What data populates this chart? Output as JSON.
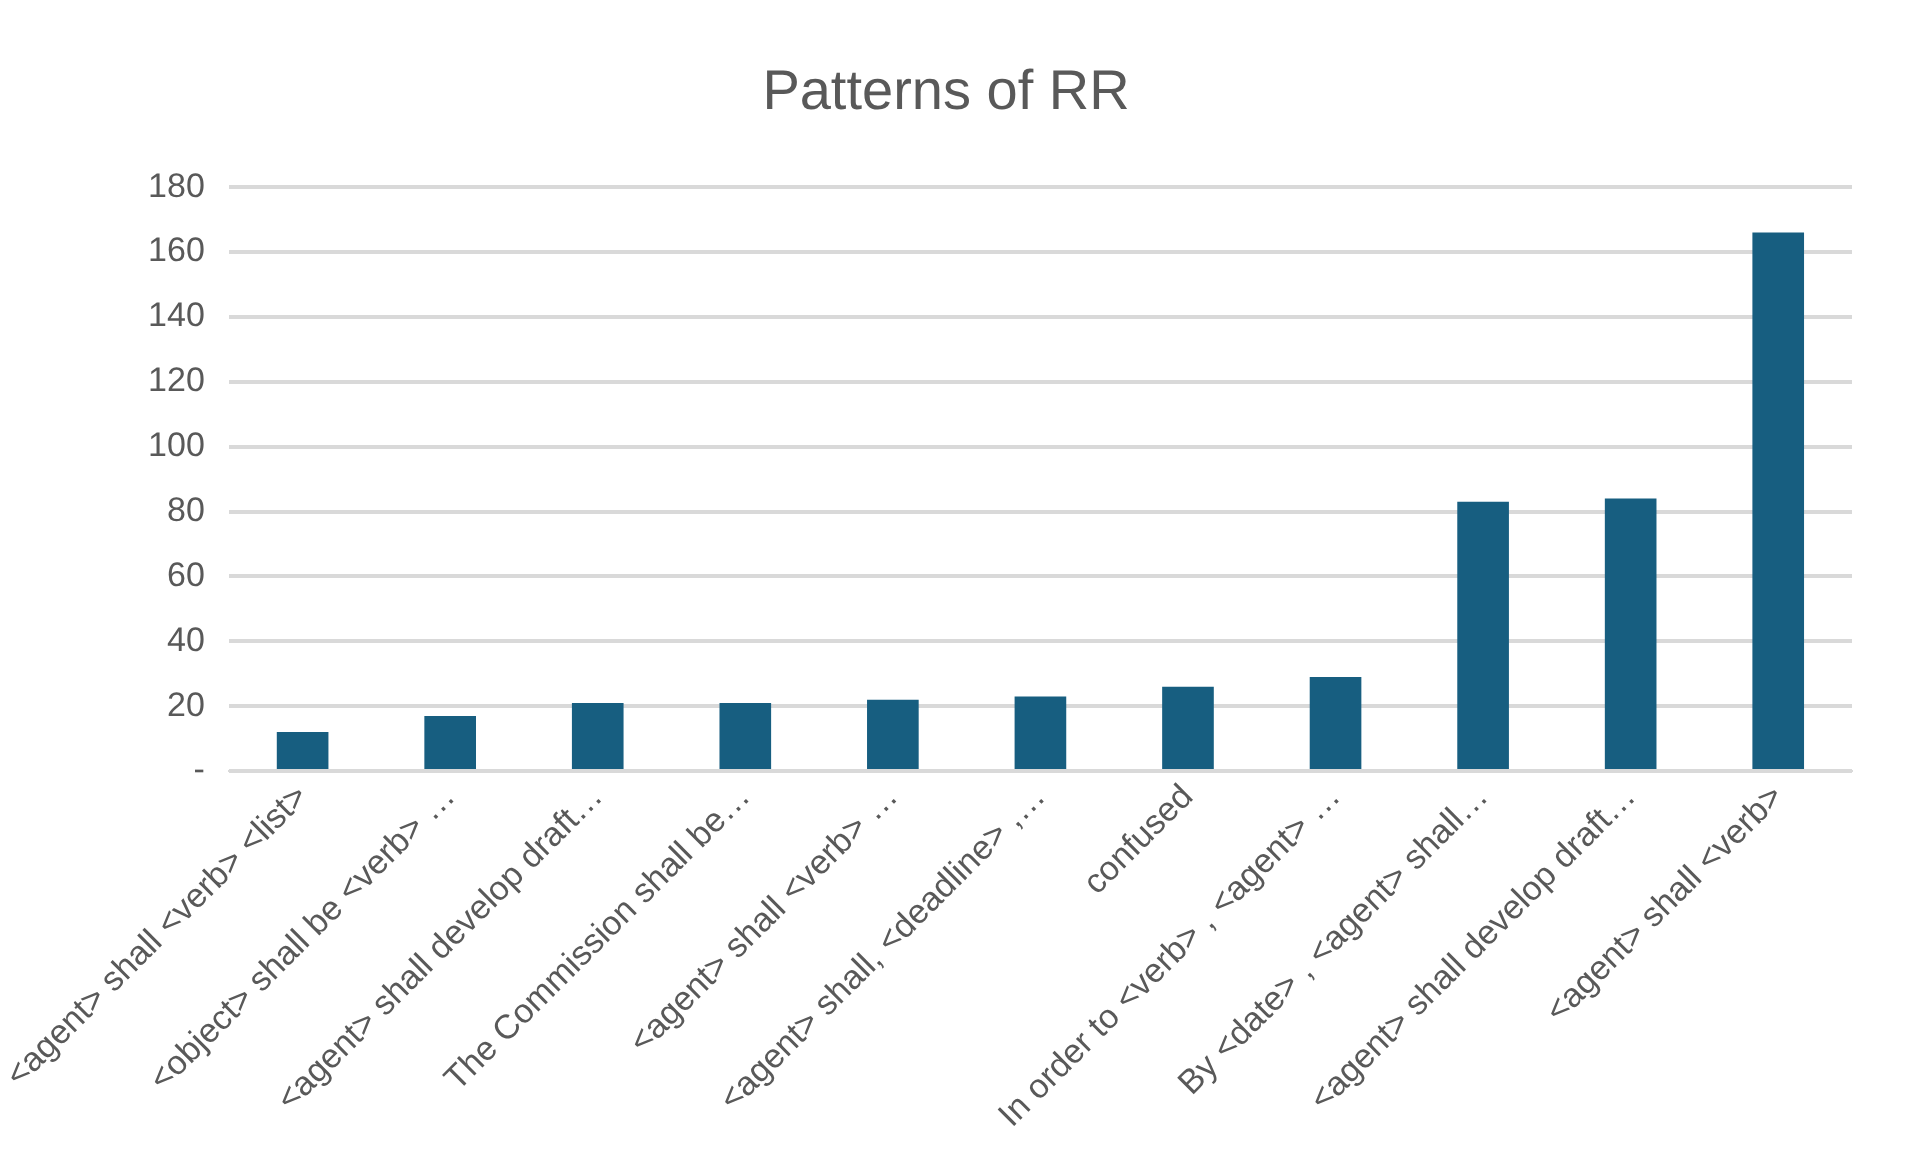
{
  "chart_data": {
    "type": "bar",
    "title": "Patterns of RR",
    "categories": [
      "<agent> shall <verb> <list>",
      "<object> shall be <verb> …",
      "<agent> shall develop draft…",
      "The Commission shall be…",
      "<agent> shall <verb> …",
      "<agent> shall, <deadline> ,…",
      "confused",
      "In order to <verb> , <agent> …",
      "By <date> , <agent> shall…",
      "<agent> shall develop draft…",
      "<agent> shall <verb>"
    ],
    "values": [
      12,
      17,
      21,
      21,
      22,
      23,
      26,
      29,
      83,
      84,
      166
    ],
    "color": "#175e80",
    "ylim": [
      0,
      180
    ],
    "yticks": [
      {
        "value": 0,
        "label": "-"
      },
      20,
      40,
      60,
      80,
      100,
      120,
      140,
      160,
      180
    ],
    "grid": "y",
    "legend": false
  }
}
